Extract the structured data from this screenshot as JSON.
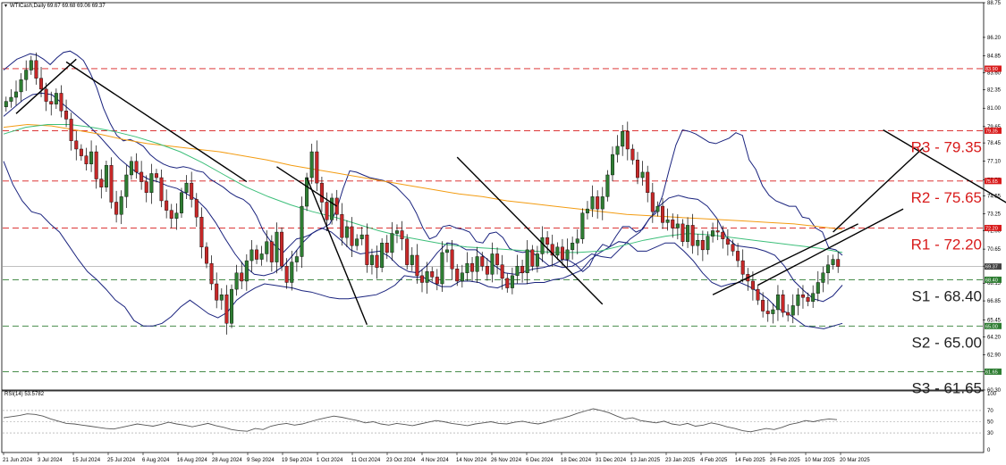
{
  "header": {
    "main_title": "WTICash,Daily  69.67 69.68 69.06 69.37",
    "rsi_title": "RSI(14) 53.5782"
  },
  "colors": {
    "resistance": "#d81b1b",
    "support": "#2e7d32",
    "up_candle": "#2e7d32",
    "down_candle": "#c62828",
    "bollinger": "#1a237e",
    "ma_orange": "#f39c12",
    "ma_green": "#3dbf7a",
    "trendline": "#000000",
    "rsi": "#555555",
    "price_tag": "#444444"
  },
  "chart_data": [
    {
      "type": "line",
      "subtype": "candlestick",
      "title": "WTICash,Daily",
      "ylim": [
        60.3,
        88.75
      ],
      "y_ticks": [
        "88.75",
        "86.20",
        "84.85",
        "83.60",
        "82.35",
        "81.00",
        "79.65",
        "78.45",
        "77.10",
        "75.75",
        "74.55",
        "73.25",
        "72.00",
        "70.65",
        "69.40",
        "68.15",
        "66.85",
        "65.45",
        "64.20",
        "62.90",
        "61.65",
        "60.30"
      ],
      "x_ticks": [
        "21 Jun 2024",
        "3 Jul 2024",
        "15 Jul 2024",
        "25 Jul 2024",
        "6 Aug 2024",
        "16 Aug 2024",
        "28 Aug 2024",
        "9 Sep 2024",
        "19 Sep 2024",
        "1 Oct 2024",
        "11 Oct 2024",
        "23 Oct 2024",
        "4 Nov 2024",
        "14 Nov 2024",
        "26 Nov 2024",
        "6 Dec 2024",
        "18 Dec 2024",
        "31 Dec 2024",
        "13 Jan 2025",
        "23 Jan 2025",
        "4 Feb 2025",
        "14 Feb 2025",
        "26 Feb 2025",
        "10 Mar 2025",
        "20 Mar 2025"
      ],
      "close_series": {
        "name": "WTICash",
        "values": [
          81.5,
          81.8,
          82.2,
          83.1,
          83.8,
          84.5,
          83.2,
          82.4,
          81.5,
          81.3,
          82.1,
          80.8,
          80.2,
          78.6,
          78.0,
          77.5,
          76.9,
          77.8,
          75.8,
          75.2,
          76.8,
          74.1,
          73.2,
          74.5,
          76.1,
          77.1,
          76.3,
          75.6,
          74.8,
          76.2,
          75.9,
          74.2,
          73.5,
          72.9,
          73.3,
          74.8,
          75.5,
          74.3,
          73.0,
          70.8,
          69.6,
          68.1,
          66.9,
          67.3,
          65.2,
          67.7,
          68.9,
          68.3,
          69.8,
          70.6,
          69.9,
          70.3,
          71.2,
          69.7,
          71.9,
          69.4,
          68.2,
          69.7,
          70.1,
          73.8,
          75.9,
          77.8,
          75.5,
          74.1,
          72.8,
          74.4,
          73.2,
          71.5,
          72.3,
          70.9,
          71.4,
          71.7,
          69.5,
          70.2,
          69.3,
          71.1,
          70.4,
          71.8,
          72.0,
          71.4,
          69.5,
          70.2,
          68.7,
          68.2,
          69.0,
          68.6,
          68.1,
          70.4,
          70.6,
          69.2,
          68.3,
          68.9,
          69.6,
          69.0,
          70.1,
          69.4,
          68.8,
          70.3,
          69.5,
          68.5,
          67.8,
          68.7,
          69.4,
          68.9,
          70.6,
          69.4,
          70.3,
          71.5,
          71.0,
          70.2,
          70.8,
          69.9,
          70.6,
          71.1,
          71.4,
          73.3,
          73.6,
          74.5,
          73.6,
          74.5,
          76.1,
          77.6,
          78.2,
          79.3,
          78.0,
          77.2,
          75.9,
          76.3,
          74.8,
          73.4,
          73.8,
          72.6,
          72.8,
          72.2,
          72.5,
          71.2,
          72.4,
          70.9,
          71.3,
          70.6,
          71.6,
          72.0,
          71.9,
          71.4,
          71.0,
          70.5,
          69.8,
          68.8,
          68.3,
          67.7,
          66.9,
          66.1,
          65.9,
          66.2,
          67.3,
          66.0,
          65.8,
          66.5,
          67.3,
          67.1,
          66.8,
          67.4,
          68.2,
          68.9,
          69.5,
          69.9,
          69.37
        ]
      },
      "series": [
        {
          "name": "",
          "kind": "bollinger-upper",
          "values": [
            83.8,
            84.2,
            84.6,
            84.8,
            85.0,
            84.9,
            84.6,
            84.2,
            84.7,
            85.1,
            85.2,
            84.9,
            84.5,
            83.6,
            82.5,
            81.0,
            79.9,
            79.0,
            78.6,
            78.7,
            78.5,
            78.2,
            77.6,
            77.2,
            76.9,
            76.7,
            76.6,
            76.7,
            76.6,
            76.4,
            76.3,
            75.8,
            75.5,
            75.2,
            74.8,
            74.5,
            74.3,
            73.9,
            73.1,
            72.0,
            71.3,
            70.8,
            70.4,
            70.9,
            71.4,
            71.5,
            71.7,
            72.0,
            72.2,
            72.5,
            73.5,
            75.1,
            76.4,
            76.3,
            76.1,
            75.9,
            75.8,
            75.7,
            75.5,
            75.2,
            74.7,
            74.2,
            73.3,
            72.2,
            71.4,
            71.6,
            72.3,
            72.4,
            72.2,
            72.1,
            71.9,
            71.2,
            71.1,
            71.8,
            71.9,
            71.5,
            70.7,
            70.5,
            70.4,
            70.5,
            70.2,
            69.8,
            69.4,
            69.6,
            69.9,
            69.8,
            69.5,
            69.0,
            69.4,
            70.4,
            71.0,
            70.8,
            71.6,
            72.3,
            72.3,
            71.9,
            72.1,
            72.9,
            73.3,
            74.6,
            76.5,
            78.3,
            79.4,
            79.3,
            79.1,
            78.8,
            78.5,
            78.4,
            78.6,
            78.8,
            79.2,
            79.0,
            77.2,
            76.5,
            75.3,
            74.6,
            74.2,
            74.0,
            73.8,
            73.8,
            73.0,
            72.9,
            72.2,
            71.9,
            70.7,
            70.6,
            70.2
          ]
        },
        {
          "name": "",
          "kind": "bollinger-middle",
          "values": [
            80.4,
            81.0,
            81.6,
            82.0,
            82.1,
            82.0,
            81.4,
            80.8,
            80.2,
            79.6,
            78.9,
            78.1,
            77.3,
            76.7,
            76.2,
            75.8,
            75.6,
            75.3,
            75.1,
            74.7,
            74.3,
            73.6,
            72.6,
            71.4,
            70.3,
            69.4,
            68.8,
            68.7,
            68.9,
            69.4,
            70.2,
            71.1,
            71.8,
            72.2,
            71.9,
            71.3,
            70.6,
            70.3,
            70.4,
            70.5,
            70.1,
            69.4,
            69.0,
            68.9,
            69.5,
            70.4,
            71.1,
            71.0,
            70.6,
            70.6,
            70.0,
            69.4,
            68.9,
            68.8,
            69.0,
            69.2,
            69.3,
            69.5,
            69.3,
            69.4,
            69.8,
            70.3,
            70.1,
            70.0,
            70.7,
            71.4,
            71.9,
            72.9,
            73.8,
            74.4,
            74.6,
            74.4,
            74.3,
            73.8,
            72.9,
            71.5,
            70.9,
            70.8,
            70.7,
            70.5,
            70.2,
            69.4,
            68.3,
            67.6,
            67.0,
            66.8,
            67.2,
            68.0
          ]
        },
        {
          "name": "",
          "kind": "bollinger-lower",
          "values": [
            77.1,
            75.4,
            74.2,
            73.4,
            73.2,
            72.5,
            71.9,
            70.9,
            69.9,
            69.0,
            68.4,
            67.7,
            66.9,
            66.4,
            65.4,
            65.0,
            65.0,
            65.2,
            65.7,
            66.4,
            66.9,
            66.4,
            65.9,
            65.6,
            66.0,
            66.9,
            67.4,
            67.8,
            68.1,
            68.0,
            67.9,
            67.8,
            67.6,
            67.5,
            67.3,
            67.1,
            67.0,
            67.0,
            67.1,
            67.2,
            67.3,
            67.6,
            68.0,
            68.7,
            68.6,
            68.6,
            68.2,
            67.9,
            67.9,
            68.3,
            68.3,
            68.2,
            67.9,
            67.8,
            68.1,
            68.1,
            68.1,
            68.2,
            68.2,
            68.4,
            68.5,
            68.8,
            69.1,
            69.9,
            70.4,
            70.8,
            71.2,
            71.1,
            70.5,
            70.5,
            70.8,
            71.1,
            71.1,
            70.5,
            69.8,
            68.9,
            68.2,
            67.9,
            68.1,
            68.2,
            67.9,
            67.5,
            67.0,
            66.3,
            66.0,
            65.5,
            65.0,
            64.9,
            64.8,
            65.0,
            65.2
          ]
        },
        {
          "name": "",
          "kind": "ma-orange",
          "values": [
            79.6,
            79.8,
            79.7,
            79.4,
            79.1,
            78.7,
            78.4,
            78.2,
            78.0,
            77.8,
            77.5,
            77.2,
            76.8,
            76.5,
            76.2,
            75.9,
            75.6,
            75.3,
            75.0,
            74.7,
            74.5,
            74.2,
            74.0,
            73.8,
            73.6,
            73.4,
            73.2,
            73.1,
            73.0,
            72.9,
            72.8,
            72.7,
            72.6,
            72.5,
            72.3,
            72.1
          ]
        },
        {
          "name": "",
          "kind": "ma-green",
          "values": [
            79.1,
            79.6,
            79.8,
            79.8,
            79.6,
            79.3,
            78.9,
            78.4,
            77.8,
            77.0,
            76.1,
            75.2,
            74.5,
            73.9,
            73.4,
            73.0,
            72.5,
            72.0,
            71.6,
            71.3,
            71.0,
            70.8,
            70.7,
            70.6,
            70.5,
            70.4,
            70.4,
            70.5,
            70.9,
            71.3,
            71.6,
            71.8,
            71.7,
            71.5,
            71.3,
            71.1,
            70.9,
            70.7,
            70.4
          ]
        }
      ],
      "resistance_levels": [
        {
          "label": "R3 - 79.35",
          "value": 79.35,
          "tag": "79.35"
        },
        {
          "label": "R2 - 75.65",
          "value": 75.65,
          "tag": "75.65"
        },
        {
          "label": "R1 - 72.20",
          "value": 72.2,
          "tag": "72.20"
        },
        {
          "label": "",
          "value": 83.9,
          "tag": "83.90"
        }
      ],
      "support_levels": [
        {
          "label": "S1 - 68.40",
          "value": 68.4,
          "tag": "68.40"
        },
        {
          "label": "S2 - 65.00",
          "value": 65.0,
          "tag": "65.00"
        },
        {
          "label": "S3 - 61.65",
          "value": 61.65,
          "tag": "61.65"
        }
      ],
      "current_price": {
        "value": 69.37,
        "tag": "69.37"
      },
      "trendlines": [
        {
          "from": [
            2,
            80.6
          ],
          "to": [
            14,
            84.6
          ]
        },
        {
          "from": [
            12,
            84.4
          ],
          "to": [
            48,
            75.6
          ]
        },
        {
          "from": [
            54,
            76.7
          ],
          "to": [
            66,
            73.8
          ]
        },
        {
          "from": [
            60,
            75.9
          ],
          "to": [
            72,
            65.1
          ]
        },
        {
          "from": [
            90,
            77.4
          ],
          "to": [
            119,
            66.6
          ]
        },
        {
          "from": [
            141,
            67.3
          ],
          "to": [
            170,
            72.5
          ]
        },
        {
          "from": [
            150,
            68.0
          ],
          "to": [
            179,
            73.6
          ]
        },
        {
          "from": [
            165,
            71.9
          ],
          "to": [
            183,
            78.1
          ]
        },
        {
          "from": [
            175,
            79.4
          ],
          "to": [
            233,
            66.8
          ]
        },
        {
          "from": [
            222,
            65.3
          ],
          "to": [
            236,
            67.7
          ]
        },
        {
          "from": [
            228,
            67.0
          ],
          "to": [
            242,
            70.8
          ]
        }
      ]
    },
    {
      "type": "line",
      "title": "RSI(14)",
      "ylim": [
        0,
        100
      ],
      "y_ticks": [
        "100",
        "70",
        "50",
        "30",
        "0"
      ],
      "series": [
        {
          "name": "RSI(14)",
          "values": [
            57,
            59,
            61,
            64,
            63,
            60,
            55,
            51,
            47,
            46,
            44,
            42,
            40,
            38,
            37,
            40,
            43,
            46,
            44,
            42,
            45,
            49,
            46,
            44,
            41,
            44,
            47,
            43,
            40,
            36,
            34,
            33,
            38,
            36,
            42,
            45,
            47,
            44,
            46,
            50,
            54,
            57,
            60,
            58,
            55,
            52,
            48,
            50,
            46,
            44,
            47,
            45,
            43,
            46,
            49,
            52,
            50,
            47,
            45,
            43,
            46,
            48,
            50,
            47,
            46,
            49,
            51,
            48,
            46,
            49,
            53,
            56,
            60,
            65,
            69,
            73,
            70,
            66,
            60,
            55,
            57,
            52,
            50,
            48,
            51,
            46,
            44,
            47,
            42,
            44,
            48,
            45,
            41,
            38,
            34,
            32,
            35,
            38,
            36,
            40,
            45,
            48,
            52,
            50,
            53,
            55,
            53.58
          ]
        }
      ]
    }
  ]
}
